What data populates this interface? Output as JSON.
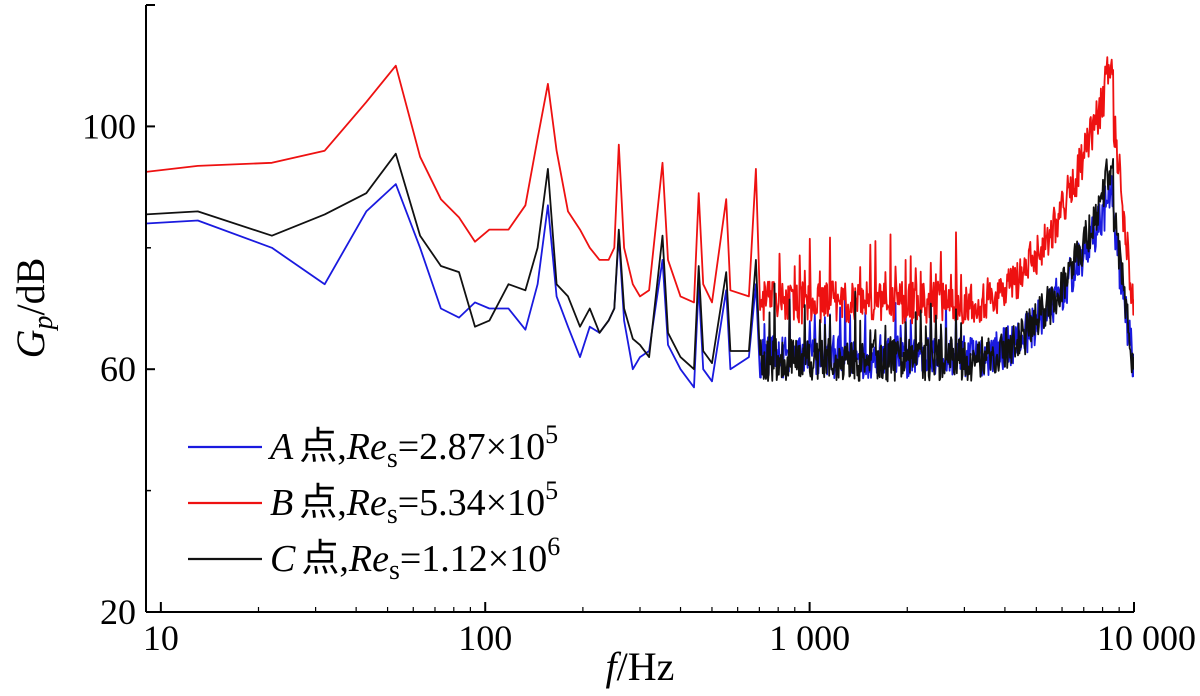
{
  "chart_data": {
    "type": "line",
    "title": "",
    "x_scale": "log",
    "xlim": [
      9,
      10000
    ],
    "ylim": [
      20,
      120
    ],
    "xticks": [
      {
        "value": 10,
        "label": "10"
      },
      {
        "value": 100,
        "label": "100"
      },
      {
        "value": 1000,
        "label": "1 000"
      },
      {
        "value": 10000,
        "label": "10 000"
      }
    ],
    "yticks": [
      {
        "value": 20,
        "label": "20"
      },
      {
        "value": 60,
        "label": "60"
      },
      {
        "value": 100,
        "label": "100"
      }
    ],
    "xlabel": {
      "var": "f",
      "unit": "Hz"
    },
    "ylabel": {
      "var": "G",
      "sub": "p",
      "unit": "dB"
    },
    "grid": false,
    "legend_placement": "bottom-left",
    "series": [
      {
        "point": "A",
        "marker": "点",
        "re_label": "Re",
        "re_sub": "s",
        "re_mantissa": "=2.87",
        "times": "×",
        "re_base": "10",
        "re_exp": "5",
        "color": "#1a1adf",
        "base_level": 62,
        "high_freq_peak": 92,
        "points": [
          [
            9,
            84
          ],
          [
            13,
            84.5
          ],
          [
            22,
            80
          ],
          [
            32,
            74
          ],
          [
            43,
            86
          ],
          [
            53,
            90.5
          ],
          [
            63,
            80
          ],
          [
            73,
            70
          ],
          [
            83,
            68.5
          ],
          [
            93,
            71
          ],
          [
            103,
            70
          ],
          [
            118,
            70
          ],
          [
            133,
            66.5
          ],
          [
            145,
            74
          ],
          [
            156,
            87
          ],
          [
            166,
            72
          ],
          [
            180,
            67
          ],
          [
            196,
            62
          ],
          [
            210,
            67
          ],
          [
            225,
            66
          ],
          [
            240,
            68
          ],
          [
            250,
            70
          ],
          [
            258,
            82
          ],
          [
            268,
            68
          ],
          [
            285,
            60
          ],
          [
            300,
            62
          ],
          [
            320,
            63
          ],
          [
            352,
            78
          ],
          [
            366,
            64
          ],
          [
            400,
            60
          ],
          [
            440,
            57
          ],
          [
            455,
            74
          ],
          [
            470,
            60
          ],
          [
            500,
            58
          ],
          [
            553,
            73
          ],
          [
            570,
            60
          ],
          [
            650,
            62
          ],
          [
            683,
            74
          ],
          [
            700,
            61
          ]
        ]
      },
      {
        "point": "B",
        "marker": "点",
        "re_label": "Re",
        "re_sub": "s",
        "re_mantissa": "=5.34",
        "times": "×",
        "re_base": "10",
        "re_exp": "5",
        "color": "#ee1111",
        "base_level": 71,
        "high_freq_peak": 112,
        "points": [
          [
            9,
            92.5
          ],
          [
            13,
            93.5
          ],
          [
            22,
            94
          ],
          [
            32,
            96
          ],
          [
            43,
            104
          ],
          [
            53,
            110
          ],
          [
            63,
            95
          ],
          [
            73,
            88
          ],
          [
            83,
            85
          ],
          [
            93,
            81
          ],
          [
            103,
            83
          ],
          [
            118,
            83
          ],
          [
            133,
            87
          ],
          [
            145,
            98
          ],
          [
            156,
            107
          ],
          [
            166,
            96
          ],
          [
            180,
            86
          ],
          [
            196,
            83
          ],
          [
            210,
            80
          ],
          [
            225,
            78
          ],
          [
            240,
            78
          ],
          [
            250,
            80
          ],
          [
            258,
            97
          ],
          [
            268,
            80
          ],
          [
            285,
            74
          ],
          [
            300,
            72
          ],
          [
            320,
            73
          ],
          [
            352,
            94
          ],
          [
            366,
            78
          ],
          [
            400,
            72
          ],
          [
            440,
            71
          ],
          [
            455,
            89
          ],
          [
            470,
            74
          ],
          [
            500,
            71
          ],
          [
            553,
            88
          ],
          [
            570,
            73
          ],
          [
            650,
            72
          ],
          [
            683,
            93
          ],
          [
            700,
            74
          ]
        ]
      },
      {
        "point": "C",
        "marker": "点",
        "re_label": "Re",
        "re_sub": "s",
        "re_mantissa": "=1.12",
        "times": "×",
        "re_base": "10",
        "re_exp": "6",
        "color": "#111111",
        "base_level": 61.5,
        "high_freq_peak": 95,
        "points": [
          [
            9,
            85.5
          ],
          [
            13,
            86
          ],
          [
            22,
            82
          ],
          [
            32,
            85.5
          ],
          [
            43,
            89
          ],
          [
            53,
            95.5
          ],
          [
            63,
            82
          ],
          [
            73,
            77
          ],
          [
            83,
            76
          ],
          [
            93,
            67
          ],
          [
            103,
            68
          ],
          [
            118,
            74
          ],
          [
            133,
            73
          ],
          [
            145,
            80
          ],
          [
            156,
            93
          ],
          [
            166,
            74
          ],
          [
            180,
            72
          ],
          [
            196,
            67
          ],
          [
            210,
            70
          ],
          [
            225,
            66
          ],
          [
            240,
            68
          ],
          [
            250,
            70
          ],
          [
            258,
            83
          ],
          [
            268,
            70
          ],
          [
            285,
            65
          ],
          [
            300,
            64
          ],
          [
            320,
            62
          ],
          [
            352,
            82
          ],
          [
            366,
            66
          ],
          [
            400,
            62
          ],
          [
            440,
            60
          ],
          [
            455,
            77
          ],
          [
            470,
            63
          ],
          [
            500,
            61
          ],
          [
            553,
            76
          ],
          [
            570,
            63
          ],
          [
            650,
            63
          ],
          [
            683,
            78
          ],
          [
            700,
            64
          ]
        ]
      }
    ]
  }
}
